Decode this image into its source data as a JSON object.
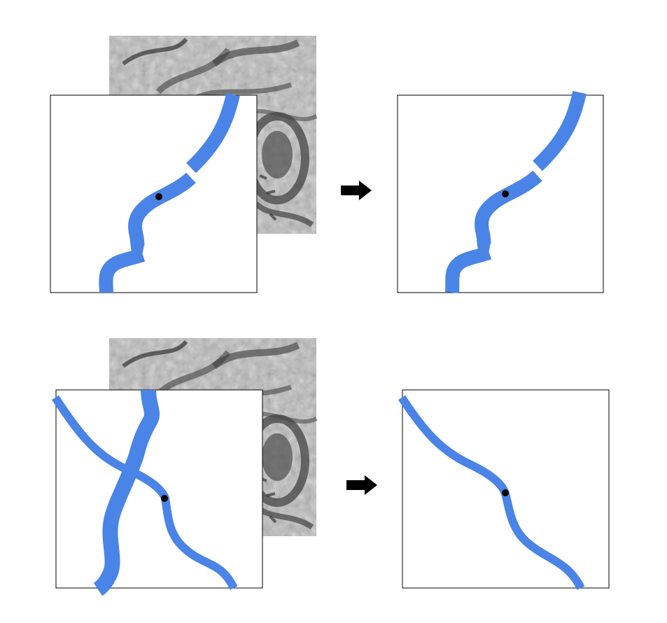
{
  "colors": {
    "background": "#ffffff",
    "segment": "#4a84e6",
    "marker": "#000000",
    "arrow": "#000000",
    "panel_border": "#000000",
    "em_base": "#b8b8b8",
    "em_dark": "#3a3a3a"
  },
  "rows": [
    {
      "input": {
        "background": "em-micrograph",
        "segments": [
          "neurite-main"
        ],
        "split_points": 2,
        "seed_marker": true
      },
      "arrow_icon": "right-arrow-icon",
      "output": {
        "segments": [
          "neurite-main"
        ],
        "seed_marker": true
      }
    },
    {
      "input": {
        "background": "em-micrograph",
        "segments": [
          "neurite-diagonal",
          "neurite-vertical"
        ],
        "seed_marker": true
      },
      "arrow_icon": "right-arrow-icon",
      "output": {
        "segments": [
          "neurite-diagonal"
        ],
        "seed_marker": true
      }
    }
  ]
}
